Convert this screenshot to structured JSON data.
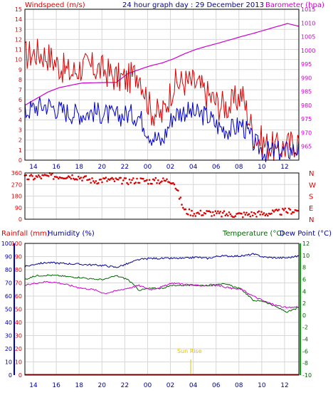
{
  "header": {
    "windspeed_label": "Windspeed (m/s)",
    "title": "24 hour graph day : 29 December 2013",
    "barometer_label": "Barometer (hpa)"
  },
  "footer": {
    "rainfall_label": "Rainfall (mm)",
    "humidity_label": "Humidity (%)",
    "temperature_label": "Temperature (°C)",
    "dewpoint_label": "Dew Point (°C)",
    "sunrise_label": "Sun Rise"
  },
  "colors": {
    "frame": "#000000",
    "grid": "#d7d7d7",
    "wind_avg": "#0000cc",
    "wind_gust": "#dd0000",
    "barometer": "#cc00cc",
    "direction": "#dd0000",
    "rain": "#dd0000",
    "humidity": "#cc00cc",
    "temperature": "#006600",
    "dewpoint": "#000099",
    "sunrise": "#e0c000",
    "left_axis_rain": "#dd0000",
    "left_axis_hum": "#000099",
    "right_axis_temp": "#006600"
  },
  "chart_data": [
    {
      "type": "line",
      "name": "wind",
      "x_ticks": [
        "14",
        "16",
        "18",
        "20",
        "22",
        "00",
        "02",
        "04",
        "06",
        "08",
        "10",
        "12",
        "14",
        "16",
        "18",
        "20",
        "22",
        "00"
      ],
      "ylabel": "Windspeed (m/s)",
      "ylim": [
        0,
        15
      ],
      "y_ticks": [
        0,
        1,
        2,
        3,
        4,
        5,
        6,
        7,
        8,
        9,
        10,
        11,
        12,
        13,
        14,
        15
      ],
      "y2label": "Barometer (hpa)",
      "y2lim": [
        960,
        1015
      ],
      "y2_ticks": [
        965,
        970,
        975,
        980,
        985,
        990,
        995,
        1000,
        1005,
        1010,
        1015
      ],
      "grid": true,
      "hours": [
        0,
        1,
        2,
        3,
        4,
        5,
        6,
        7,
        8,
        9,
        10,
        11,
        12,
        13,
        14,
        15,
        16,
        17,
        18,
        19,
        20,
        21,
        22,
        23,
        24
      ],
      "series": [
        {
          "name": "avg",
          "values": [
            4.8,
            5.3,
            5.5,
            5.0,
            4.7,
            4.6,
            4.8,
            4.6,
            4.3,
            4.6,
            4.4,
            2.5,
            1.8,
            4.5,
            4.9,
            4.6,
            4.4,
            3.3,
            3.0,
            3.6,
            1.8,
            0.8,
            0.9,
            0.9,
            1.2
          ]
        },
        {
          "name": "gust",
          "values": [
            10.4,
            10.7,
            10.4,
            9.4,
            8.6,
            9.3,
            9.2,
            8.9,
            8.2,
            8.0,
            8.8,
            5.0,
            4.4,
            7.5,
            7.8,
            7.6,
            6.5,
            5.5,
            5.4,
            6.6,
            2.7,
            1.6,
            1.2,
            1.4,
            2.0
          ]
        },
        {
          "name": "barometer",
          "values": [
            980.0,
            982.4,
            984.8,
            986.4,
            987.3,
            988.1,
            988.2,
            988.3,
            988.3,
            991.5,
            993.0,
            994.4,
            995.4,
            996.9,
            998.8,
            1000.4,
            1001.6,
            1002.7,
            1003.9,
            1005.1,
            1006.2,
            1007.4,
            1008.6,
            1009.8,
            1008.8
          ]
        }
      ]
    },
    {
      "type": "scatter",
      "name": "wind-direction",
      "ylim": [
        0,
        360
      ],
      "y_ticks": [
        0,
        90,
        180,
        270,
        360
      ],
      "y_compass": [
        "N",
        "E",
        "S",
        "W",
        "N"
      ],
      "hours": [
        0,
        1,
        2,
        3,
        4,
        5,
        6,
        7,
        8,
        9,
        10,
        11,
        12,
        13,
        14,
        15,
        16,
        17,
        18,
        19,
        20,
        21,
        22,
        23,
        24
      ],
      "values": [
        320,
        328,
        333,
        336,
        338,
        325,
        298,
        308,
        302,
        296,
        305,
        296,
        301,
        300,
        62,
        46,
        52,
        40,
        38,
        36,
        42,
        44,
        51,
        62,
        70
      ]
    },
    {
      "type": "line",
      "name": "temp-humidity",
      "ylim": [
        0,
        100
      ],
      "y_ticks": [
        0,
        10,
        20,
        30,
        40,
        50,
        60,
        70,
        80,
        90,
        100
      ],
      "y2lim": [
        -10,
        12
      ],
      "y2_ticks": [
        -10,
        -8,
        -6,
        -4,
        -2,
        0,
        2,
        4,
        6,
        8,
        10,
        12
      ],
      "hours": [
        0,
        1,
        2,
        3,
        4,
        5,
        6,
        7,
        8,
        9,
        10,
        11,
        12,
        13,
        14,
        15,
        16,
        17,
        18,
        19,
        20,
        21,
        22,
        23,
        24
      ],
      "series": [
        {
          "name": "Humidity (%)",
          "values": [
            68,
            70,
            71,
            70,
            68,
            66,
            65,
            62,
            64,
            66,
            68,
            65,
            67,
            70,
            69,
            68,
            68,
            68,
            66,
            65,
            60,
            56,
            53,
            51,
            52
          ]
        },
        {
          "name": "Temperature (°C)",
          "values": [
            6.0,
            6.6,
            6.7,
            6.6,
            6.4,
            6.3,
            6.0,
            6.0,
            6.6,
            6.0,
            4.2,
            4.5,
            4.5,
            5.0,
            5.0,
            5.0,
            5.0,
            5.3,
            5.0,
            4.3,
            2.5,
            2.3,
            1.4,
            0.5,
            1.3
          ]
        },
        {
          "name": "Dew Point (°C)",
          "values": [
            8.1,
            8.6,
            8.8,
            8.7,
            8.6,
            8.5,
            8.4,
            8.3,
            8.0,
            8.6,
            9.3,
            9.5,
            9.5,
            9.5,
            9.5,
            9.7,
            9.5,
            9.9,
            9.9,
            9.9,
            10.2,
            9.7,
            9.6,
            9.6,
            9.9
          ]
        },
        {
          "name": "Rainfall (mm)",
          "values": [
            0,
            0,
            0,
            0,
            0,
            0,
            0,
            0,
            0,
            0,
            0,
            0,
            0,
            0,
            0,
            0,
            0,
            0,
            0,
            0,
            0,
            0,
            0,
            0,
            0
          ]
        }
      ]
    }
  ]
}
